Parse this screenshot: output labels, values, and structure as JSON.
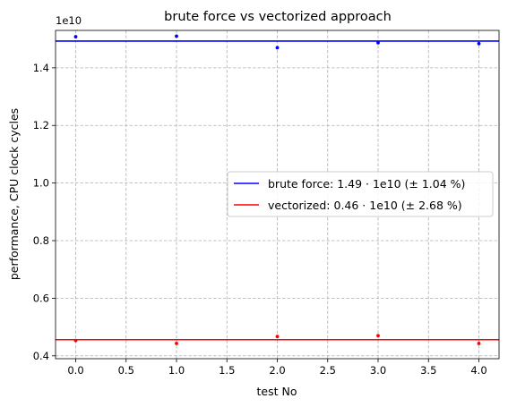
{
  "chart_data": {
    "type": "scatter",
    "title": "brute force vs vectorized approach",
    "xlabel": "test No",
    "ylabel": "performance, CPU clock cycles",
    "y_offset_label": "1e10",
    "xlim": [
      -0.2,
      4.2
    ],
    "ylim": [
      0.39,
      1.53
    ],
    "x_ticks": [
      0.0,
      0.5,
      1.0,
      1.5,
      2.0,
      2.5,
      3.0,
      3.5,
      4.0
    ],
    "x_tick_labels": [
      "0.0",
      "0.5",
      "1.0",
      "1.5",
      "2.0",
      "2.5",
      "3.0",
      "3.5",
      "4.0"
    ],
    "y_ticks": [
      0.4,
      0.6,
      0.8,
      1.0,
      1.2,
      1.4
    ],
    "y_tick_labels": [
      "0.4",
      "0.6",
      "0.8",
      "1.0",
      "1.2",
      "1.4"
    ],
    "grid": true,
    "legend_position": "center-right",
    "series": [
      {
        "name": "brute force: 1.49 · 1e10 (± 1.04 %)",
        "color": "#0000ff",
        "x": [
          0,
          1,
          2,
          3,
          4
        ],
        "values": [
          1.508,
          1.51,
          1.47,
          1.487,
          1.484
        ],
        "mean": 1.493
      },
      {
        "name": "vectorized: 0.46 · 1e10 (± 2.68 %)",
        "color": "#ff0000",
        "x": [
          0,
          1,
          2,
          3,
          4
        ],
        "values": [
          0.453,
          0.443,
          0.467,
          0.47,
          0.443
        ],
        "mean": 0.456
      }
    ]
  }
}
